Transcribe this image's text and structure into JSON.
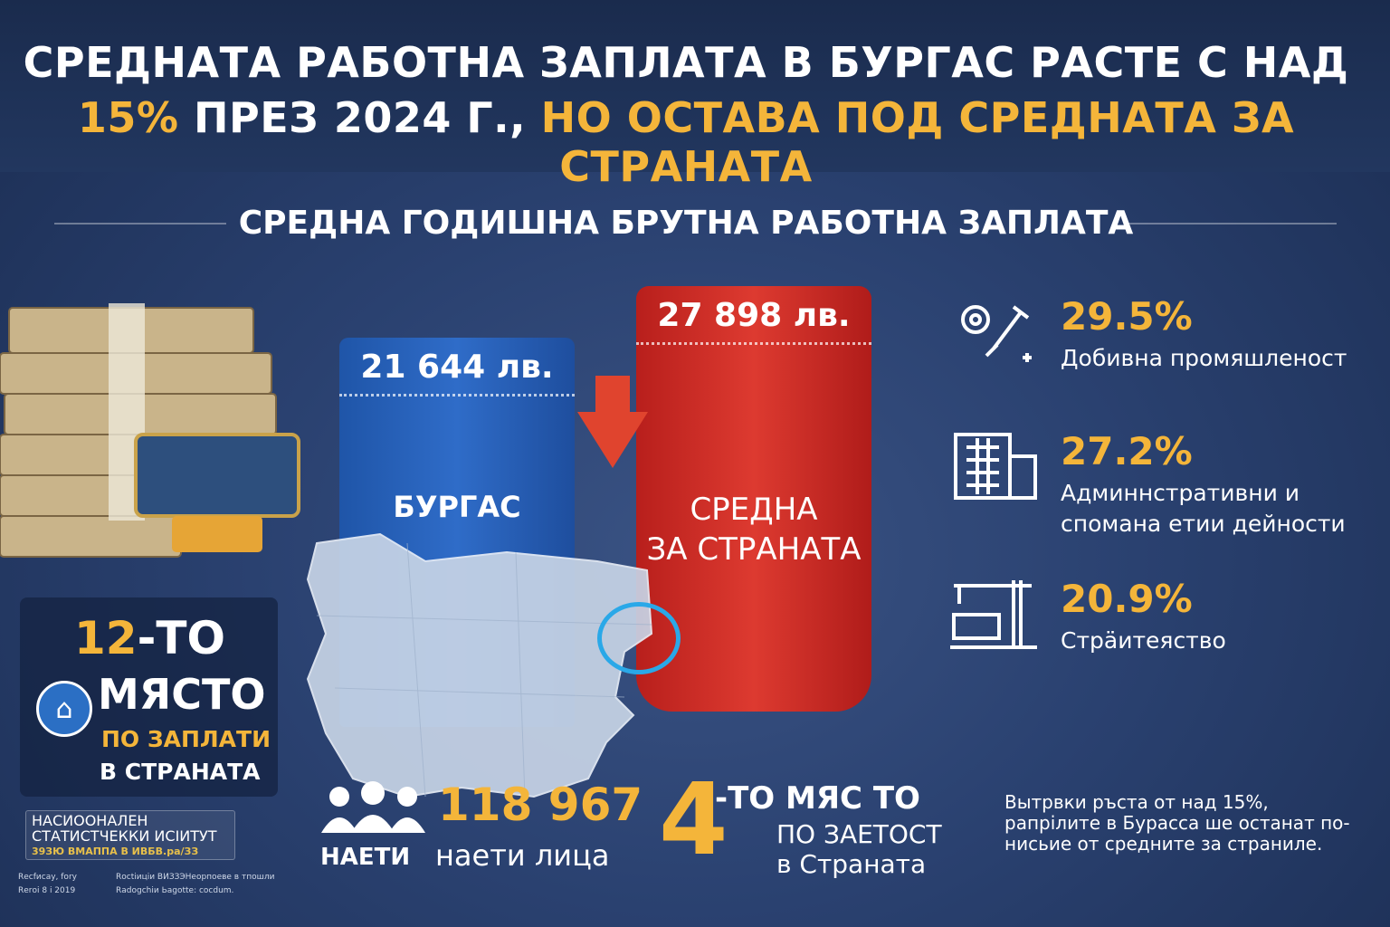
{
  "title": {
    "line1": "СРЕДНАТА РАБОТНА ЗАПЛАТА В БУРГАС РАСТЕ С НАД",
    "line2_highlight": "15%",
    "line2_mid": " ПРЕЗ 2024 Г., ",
    "line2_end": "НО ОСТАВА ПОД СРЕДНАТА ЗА СТРАНАТА"
  },
  "subtitle": "СРЕДНА ГОДИШНА БРУТНА РАБОТНА ЗАПЛАТА",
  "comparison": {
    "burgas": {
      "value": 21644,
      "value_label": "21 644 лв.",
      "label": "БУРГАС",
      "color": "#2a62b8"
    },
    "national": {
      "value": 27898,
      "value_label": "27 898 лв.",
      "label_line1": "СРЕДНА",
      "label_line2": "ЗА СТРАНАТА",
      "color": "#d2332b"
    }
  },
  "ranking": {
    "number": "12",
    "suffix": "-ТО",
    "word": "МЯСТО",
    "line1": "ПО ЗАПЛАТИ",
    "line2": "В СТРАНАТА"
  },
  "source": {
    "line1": "НАСИООНАЛЕН",
    "line2": "СТАТИСТЧЕККИ ИСІИТУТ",
    "code": "39ЗЮ  ВМАППА В ИВБВ.ра/ЗЗ"
  },
  "notes": [
    "Rеcfисаy, forу",
    "Rеrоі 8 і 2019",
    "Rосtіиціи ВИЗЗЭНеорпоеве в тпошли",
    "Rаdogchiи Ьagotte: coсdum."
  ],
  "industries": [
    {
      "pct": "29.5%",
      "name": "Добивна промяшленост",
      "icon": "gear-wrench-icon"
    },
    {
      "pct": "27.2%",
      "name": "Админнстративни и спомана етии дейности",
      "icon": "office-building-icon"
    },
    {
      "pct": "20.9%",
      "name": "Стрäитеяство",
      "icon": "construction-crane-icon"
    }
  ],
  "employment": {
    "number": "118 967",
    "bold_label": "НАЕТИ",
    "label": "наети лица"
  },
  "employment_rank": {
    "number": "4",
    "suffix": "-ТО МЯС ТО",
    "line1": "ПО ЗАЕТОСТ",
    "line2": "в Страната"
  },
  "conclusion": "Вытрвки ръста от над 15%, рапрілите в Бурасса ше останат по-нисьие от средните за страниле.",
  "colors": {
    "accent": "#f4b53a",
    "background": "#24395f"
  }
}
